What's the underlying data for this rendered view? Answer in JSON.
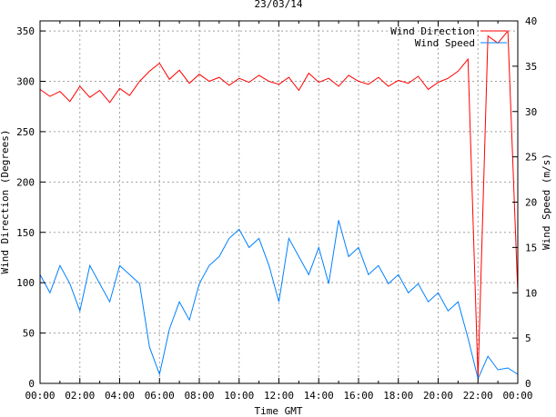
{
  "chart_data": {
    "type": "line",
    "title": "23/03/14",
    "xlabel": "Time GMT",
    "ylabel": "Wind Direction (Degrees)",
    "y2label": "Wind Speed (m/s)",
    "xlim": [
      0,
      24
    ],
    "ylim": [
      0,
      360
    ],
    "y2lim": [
      0,
      40
    ],
    "x_ticks": [
      "00:00",
      "02:00",
      "04:00",
      "06:00",
      "08:00",
      "10:00",
      "12:00",
      "14:00",
      "16:00",
      "18:00",
      "20:00",
      "22:00",
      "00:00"
    ],
    "y_ticks": [
      "0",
      "50",
      "100",
      "150",
      "200",
      "250",
      "300",
      "350"
    ],
    "y2_ticks": [
      "0",
      "5",
      "10",
      "15",
      "20",
      "25",
      "30",
      "35",
      "40"
    ],
    "grid": true,
    "legend_position": "top-right",
    "x": [
      0,
      0.5,
      1,
      1.5,
      2,
      2.5,
      3,
      3.5,
      4,
      4.5,
      5,
      5.5,
      6,
      6.5,
      7,
      7.5,
      8,
      8.5,
      9,
      9.5,
      10,
      10.5,
      11,
      11.5,
      12,
      12.5,
      13,
      13.5,
      14,
      14.5,
      15,
      15.5,
      16,
      16.5,
      17,
      17.5,
      18,
      18.5,
      19,
      19.5,
      20,
      20.5,
      21,
      21.5,
      22,
      22.5,
      23,
      23.5,
      24
    ],
    "series": [
      {
        "name": "Wind Direction",
        "axis": "left",
        "color": "#ff0000",
        "values": [
          292,
          285,
          290,
          280,
          295,
          284,
          291,
          279,
          293,
          286,
          300,
          310,
          318,
          302,
          311,
          298,
          307,
          300,
          304,
          296,
          303,
          299,
          306,
          300,
          297,
          304,
          291,
          308,
          299,
          303,
          295,
          306,
          300,
          297,
          304,
          295,
          301,
          298,
          305,
          292,
          299,
          303,
          310,
          322,
          5,
          345,
          338,
          350,
          90
        ]
      },
      {
        "name": "Wind Speed",
        "axis": "right",
        "color": "#0080ff",
        "values": [
          12,
          10,
          13,
          11,
          8,
          13,
          11,
          9,
          13,
          12,
          11,
          4,
          1,
          6,
          9,
          7,
          11,
          13,
          14,
          16,
          17,
          15,
          16,
          13,
          9,
          16,
          14,
          12,
          15,
          11,
          18,
          14,
          15,
          12,
          13,
          11,
          12,
          10,
          11,
          9,
          10,
          8,
          9,
          5,
          0.5,
          3,
          1.5,
          1.7,
          1
        ]
      }
    ]
  }
}
